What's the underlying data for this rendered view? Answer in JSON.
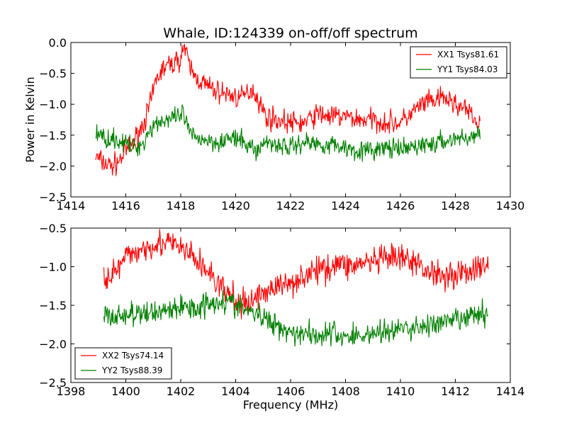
{
  "figure": {
    "title": "Whale, ID:124339 on-off/off spectrum",
    "xlabel": "Frequency (MHz)",
    "ylabel": "Power in Kelvin"
  },
  "colors": {
    "XX": "#ff0000",
    "YY": "#008000"
  },
  "chart_data": [
    {
      "type": "line",
      "title": "Whale, ID:124339 on-off/off spectrum",
      "xlabel": "",
      "ylabel": "Power in Kelvin",
      "xlim": [
        1414,
        1430
      ],
      "ylim": [
        -2.5,
        0.0
      ],
      "xticks": [
        1414,
        1416,
        1418,
        1420,
        1422,
        1424,
        1426,
        1428,
        1430
      ],
      "yticks": [
        0.0,
        -0.5,
        -1.0,
        -1.5,
        -2.0,
        -2.5
      ],
      "xtick_labels": [
        "1414",
        "1416",
        "1418",
        "1420",
        "1422",
        "1424",
        "1426",
        "1428",
        "1430"
      ],
      "ytick_labels": [
        "0.0",
        "−0.5",
        "−1.0",
        "−1.5",
        "−2.0",
        "−2.5"
      ],
      "grid": false,
      "legend": "top-right",
      "series": [
        {
          "name": "XX1 Tsys81.61",
          "color": "#ff0000",
          "x": [
            1414.9,
            1415.2,
            1415.5,
            1415.8,
            1416.0,
            1416.3,
            1416.6,
            1416.9,
            1417.1,
            1417.4,
            1417.7,
            1418.0,
            1418.1,
            1418.3,
            1418.5,
            1418.8,
            1419.1,
            1419.4,
            1419.8,
            1420.2,
            1420.6,
            1420.8,
            1421.1,
            1421.5,
            1422.0,
            1422.5,
            1423.0,
            1423.5,
            1424.0,
            1424.5,
            1425.0,
            1425.5,
            1426.0,
            1426.4,
            1426.8,
            1427.2,
            1427.6,
            1428.0,
            1428.4,
            1428.9
          ],
          "y": [
            -1.85,
            -1.95,
            -2.0,
            -1.9,
            -1.75,
            -1.6,
            -1.35,
            -1.0,
            -0.6,
            -0.4,
            -0.35,
            -0.25,
            -0.05,
            -0.35,
            -0.55,
            -0.65,
            -0.75,
            -0.8,
            -0.85,
            -0.9,
            -0.75,
            -0.9,
            -1.2,
            -1.25,
            -1.3,
            -1.3,
            -1.15,
            -1.2,
            -1.2,
            -1.25,
            -1.25,
            -1.3,
            -1.3,
            -1.15,
            -1.0,
            -0.95,
            -0.9,
            -1.0,
            -1.1,
            -1.35
          ]
        },
        {
          "name": "YY1 Tsys84.03",
          "color": "#008000",
          "x": [
            1414.9,
            1415.2,
            1415.5,
            1415.8,
            1416.0,
            1416.3,
            1416.6,
            1416.9,
            1417.1,
            1417.4,
            1417.7,
            1418.0,
            1418.1,
            1418.3,
            1418.5,
            1418.8,
            1419.1,
            1419.4,
            1419.8,
            1420.2,
            1420.6,
            1420.8,
            1421.1,
            1421.5,
            1422.0,
            1422.5,
            1423.0,
            1423.5,
            1424.0,
            1424.5,
            1425.0,
            1425.5,
            1426.0,
            1426.4,
            1426.8,
            1427.2,
            1427.6,
            1428.0,
            1428.4,
            1428.9
          ],
          "y": [
            -1.45,
            -1.55,
            -1.55,
            -1.6,
            -1.65,
            -1.7,
            -1.65,
            -1.4,
            -1.3,
            -1.25,
            -1.25,
            -1.2,
            -1.15,
            -1.45,
            -1.55,
            -1.55,
            -1.6,
            -1.6,
            -1.55,
            -1.6,
            -1.7,
            -1.75,
            -1.6,
            -1.65,
            -1.7,
            -1.6,
            -1.65,
            -1.65,
            -1.7,
            -1.75,
            -1.75,
            -1.7,
            -1.75,
            -1.7,
            -1.65,
            -1.65,
            -1.6,
            -1.55,
            -1.55,
            -1.5
          ]
        }
      ]
    },
    {
      "type": "line",
      "title": "",
      "xlabel": "Frequency (MHz)",
      "ylabel": "",
      "xlim": [
        1398,
        1414
      ],
      "ylim": [
        -2.5,
        -0.5
      ],
      "xticks": [
        1398,
        1400,
        1402,
        1404,
        1406,
        1408,
        1410,
        1412,
        1414
      ],
      "yticks": [
        -0.5,
        -1.0,
        -1.5,
        -2.0,
        -2.5
      ],
      "xtick_labels": [
        "1398",
        "1400",
        "1402",
        "1404",
        "1406",
        "1408",
        "1410",
        "1412",
        "1414"
      ],
      "ytick_labels": [
        "−0.5",
        "−1.0",
        "−1.5",
        "−2.0",
        "−2.5"
      ],
      "grid": false,
      "legend": "bottom-left",
      "series": [
        {
          "name": "XX2 Tsys74.14",
          "color": "#ff0000",
          "x": [
            1399.2,
            1399.5,
            1399.8,
            1400.1,
            1400.4,
            1400.7,
            1401.0,
            1401.3,
            1401.6,
            1401.9,
            1402.2,
            1402.5,
            1402.8,
            1403.1,
            1403.4,
            1403.7,
            1404.0,
            1404.3,
            1404.6,
            1404.9,
            1405.2,
            1405.5,
            1405.8,
            1406.0,
            1406.3,
            1406.6,
            1407.0,
            1407.4,
            1407.8,
            1408.2,
            1408.6,
            1409.0,
            1409.5,
            1410.0,
            1410.5,
            1411.0,
            1411.5,
            1412.0,
            1412.5,
            1413.2
          ],
          "y": [
            -1.1,
            -1.1,
            -1.0,
            -0.85,
            -0.8,
            -0.75,
            -0.7,
            -0.7,
            -0.7,
            -0.75,
            -0.8,
            -0.9,
            -1.0,
            -1.1,
            -1.25,
            -1.35,
            -1.45,
            -1.5,
            -1.45,
            -1.35,
            -1.3,
            -1.25,
            -1.25,
            -1.2,
            -1.15,
            -1.1,
            -1.05,
            -1.0,
            -0.95,
            -1.0,
            -0.95,
            -0.95,
            -0.9,
            -0.9,
            -0.95,
            -1.05,
            -1.1,
            -1.1,
            -1.05,
            -1.0
          ]
        },
        {
          "name": "YY2 Tsys88.39",
          "color": "#008000",
          "x": [
            1399.2,
            1399.5,
            1399.8,
            1400.1,
            1400.4,
            1400.7,
            1401.0,
            1401.3,
            1401.6,
            1401.9,
            1402.2,
            1402.5,
            1402.8,
            1403.1,
            1403.4,
            1403.7,
            1404.0,
            1404.3,
            1404.6,
            1404.9,
            1405.2,
            1405.5,
            1405.8,
            1406.0,
            1406.3,
            1406.6,
            1407.0,
            1407.4,
            1407.8,
            1408.2,
            1408.6,
            1409.0,
            1409.5,
            1410.0,
            1410.5,
            1411.0,
            1411.5,
            1412.0,
            1412.5,
            1413.2
          ],
          "y": [
            -1.6,
            -1.65,
            -1.65,
            -1.6,
            -1.65,
            -1.6,
            -1.6,
            -1.55,
            -1.55,
            -1.55,
            -1.5,
            -1.55,
            -1.5,
            -1.45,
            -1.45,
            -1.45,
            -1.5,
            -1.55,
            -1.6,
            -1.65,
            -1.7,
            -1.75,
            -1.8,
            -1.85,
            -1.85,
            -1.85,
            -1.9,
            -1.85,
            -1.9,
            -1.9,
            -1.9,
            -1.85,
            -1.85,
            -1.8,
            -1.8,
            -1.75,
            -1.75,
            -1.7,
            -1.65,
            -1.6
          ]
        }
      ]
    }
  ]
}
